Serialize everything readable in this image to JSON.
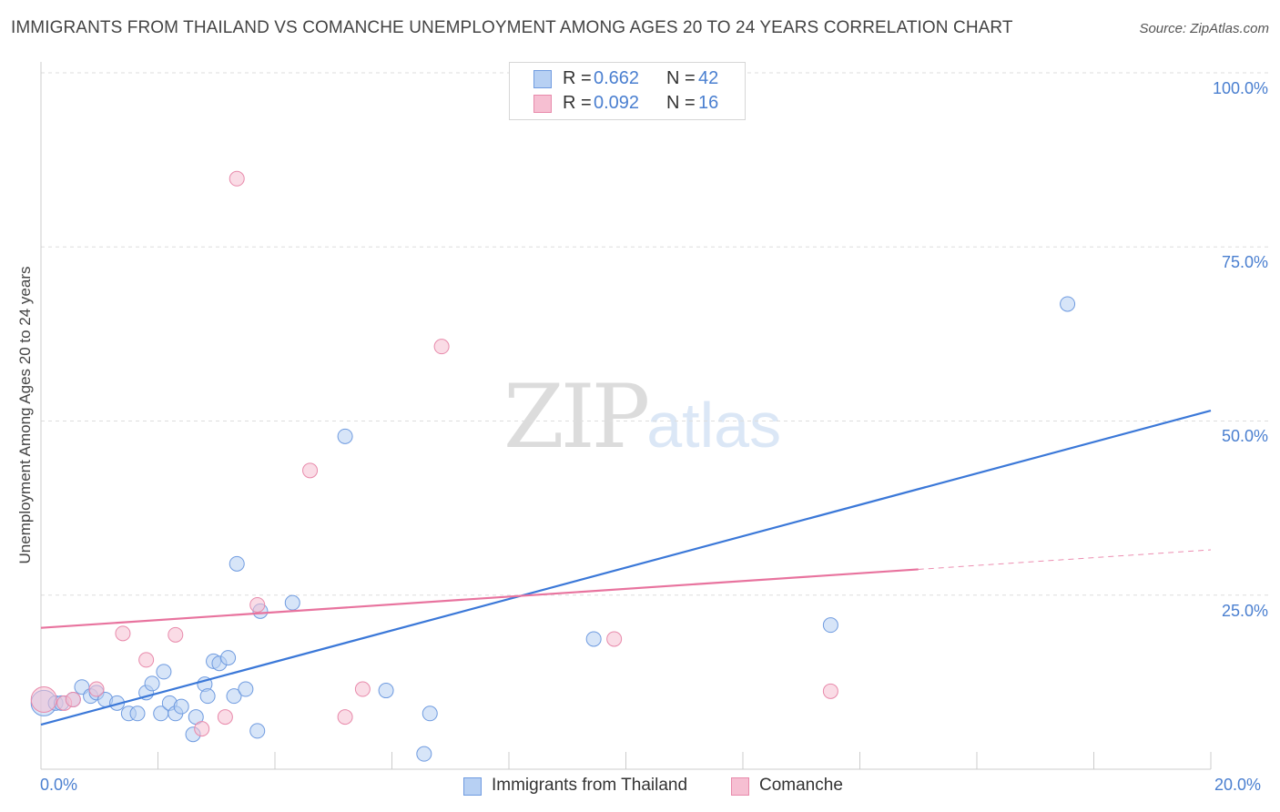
{
  "title": "IMMIGRANTS FROM THAILAND VS COMANCHE UNEMPLOYMENT AMONG AGES 20 TO 24 YEARS CORRELATION CHART",
  "source": "Source: ZipAtlas.com",
  "watermark": {
    "zip": "ZIP",
    "atlas": "atlas"
  },
  "legend": {
    "series1": {
      "r_label": "R =",
      "r_value": "0.662",
      "n_label": "N =",
      "n_value": "42"
    },
    "series2": {
      "r_label": "R =",
      "r_value": "0.092",
      "n_label": "N =",
      "n_value": "16"
    }
  },
  "colors": {
    "blue": "#3b78d8",
    "blue_fill": "#b7d0f3",
    "pink": "#e8739e",
    "pink_fill": "#f6bfd2",
    "tick_text": "#4a7fd0"
  },
  "chart_data": {
    "type": "scatter",
    "title": "IMMIGRANTS FROM THAILAND VS COMANCHE UNEMPLOYMENT AMONG AGES 20 TO 24 YEARS CORRELATION CHART",
    "xlabel": "",
    "ylabel": "Unemployment Among Ages 20 to 24 years",
    "xlim": [
      0,
      20
    ],
    "ylim": [
      0,
      100
    ],
    "x_tick_labels": [
      "0.0%",
      "20.0%"
    ],
    "y_tick_labels": [
      "25.0%",
      "50.0%",
      "75.0%",
      "100.0%"
    ],
    "y_ticks": [
      25,
      50,
      75,
      100
    ],
    "series": [
      {
        "name": "Immigrants from Thailand",
        "color": "#3b78d8",
        "r": 0.662,
        "n": 42,
        "trend": {
          "x": [
            0,
            20
          ],
          "y": [
            6.4,
            51.5
          ]
        },
        "points": [
          [
            0.05,
            9.5,
            14
          ],
          [
            0.25,
            9.5,
            8
          ],
          [
            0.35,
            9.5,
            8
          ],
          [
            0.55,
            10,
            8
          ],
          [
            0.7,
            11.8,
            8
          ],
          [
            0.85,
            10.5,
            8
          ],
          [
            0.95,
            11,
            8
          ],
          [
            1.1,
            10,
            8
          ],
          [
            1.3,
            9.5,
            8
          ],
          [
            1.5,
            8,
            8
          ],
          [
            1.65,
            8,
            8
          ],
          [
            1.8,
            11,
            8
          ],
          [
            1.9,
            12.3,
            8
          ],
          [
            2.05,
            8,
            8
          ],
          [
            2.1,
            14,
            8
          ],
          [
            2.2,
            9.5,
            8
          ],
          [
            2.3,
            8,
            8
          ],
          [
            2.4,
            9,
            8
          ],
          [
            2.6,
            5,
            8
          ],
          [
            2.65,
            7.5,
            8
          ],
          [
            2.8,
            12.2,
            8
          ],
          [
            2.85,
            10.5,
            8
          ],
          [
            2.95,
            15.5,
            8
          ],
          [
            3.05,
            15.2,
            8
          ],
          [
            3.2,
            16,
            8
          ],
          [
            3.3,
            10.5,
            8
          ],
          [
            3.35,
            29.5,
            8
          ],
          [
            3.5,
            11.5,
            8
          ],
          [
            3.7,
            5.5,
            8
          ],
          [
            3.75,
            22.7,
            8
          ],
          [
            4.3,
            23.9,
            8
          ],
          [
            5.2,
            47.8,
            8
          ],
          [
            5.9,
            11.3,
            8
          ],
          [
            6.55,
            2.2,
            8
          ],
          [
            6.65,
            8,
            8
          ],
          [
            9.45,
            18.7,
            8
          ],
          [
            13.5,
            20.7,
            8
          ],
          [
            17.55,
            66.8,
            8
          ]
        ]
      },
      {
        "name": "Comanche",
        "color": "#e8739e",
        "r": 0.092,
        "n": 16,
        "trend": {
          "x": [
            0,
            15
          ],
          "y": [
            20.3,
            28.7
          ]
        },
        "trend_dashed": {
          "x": [
            15,
            20
          ],
          "y": [
            28.7,
            31.5
          ]
        },
        "points": [
          [
            0.05,
            10,
            14
          ],
          [
            0.4,
            9.5,
            8
          ],
          [
            0.55,
            10,
            8
          ],
          [
            0.95,
            11.5,
            8
          ],
          [
            1.4,
            19.5,
            8
          ],
          [
            1.8,
            15.7,
            8
          ],
          [
            2.3,
            19.3,
            8
          ],
          [
            2.75,
            5.8,
            8
          ],
          [
            3.15,
            7.5,
            8
          ],
          [
            3.35,
            84.8,
            8
          ],
          [
            3.7,
            23.6,
            8
          ],
          [
            4.6,
            42.9,
            8
          ],
          [
            5.2,
            7.5,
            8
          ],
          [
            5.5,
            11.5,
            8
          ],
          [
            6.85,
            60.7,
            8
          ],
          [
            9.8,
            18.7,
            8
          ],
          [
            13.5,
            11.2,
            8
          ]
        ]
      }
    ]
  }
}
